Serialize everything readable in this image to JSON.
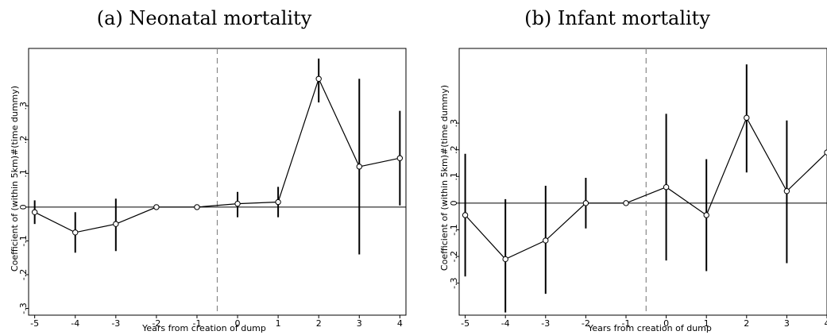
{
  "chart_data": [
    {
      "type": "line",
      "title": "(a) Neonatal mortality",
      "xlabel": "Years from creation of dump",
      "ylabel": "Coefficient of (within 5km)#(time dummy)",
      "x": [
        -5,
        -4,
        -3,
        -2,
        -1,
        0,
        1,
        2,
        3,
        4
      ],
      "values": [
        -0.015,
        -0.075,
        -0.05,
        0.0,
        0.0,
        0.01,
        0.015,
        0.38,
        0.12,
        0.145
      ],
      "ci_low": [
        -0.05,
        -0.135,
        -0.13,
        0.0,
        0.0,
        -0.03,
        -0.03,
        0.31,
        -0.14,
        0.005
      ],
      "ci_high": [
        0.02,
        -0.015,
        0.025,
        0.0,
        0.0,
        0.045,
        0.06,
        0.44,
        0.38,
        0.285
      ],
      "xticks": [
        "-5",
        "-4",
        "-3",
        "-2",
        "-1",
        "0",
        "1",
        "2",
        "3",
        "4"
      ],
      "yticks": [
        {
          "value": -0.3,
          "label": "-.3"
        },
        {
          "value": -0.2,
          "label": "-.2"
        },
        {
          "value": -0.1,
          "label": "-.1"
        },
        {
          "value": 0,
          "label": "0"
        },
        {
          "value": 0.1,
          "label": ".1"
        },
        {
          "value": 0.2,
          "label": ".2"
        },
        {
          "value": 0.3,
          "label": ".3"
        }
      ],
      "xlim": [
        -5.15,
        4.15
      ],
      "ylim": [
        -0.32,
        0.47
      ],
      "event_line_x": -0.5,
      "reference_line_y": 0,
      "grid": false
    },
    {
      "type": "line",
      "title": "(b) Infant mortality",
      "xlabel": "Years from creation of dump",
      "ylabel": "Coefficient of (within 5km)#(time dummy)",
      "x": [
        -5,
        -4,
        -3,
        -2,
        -1,
        0,
        1,
        2,
        3,
        4
      ],
      "values": [
        -0.045,
        -0.21,
        -0.14,
        0.0,
        0.0,
        0.06,
        -0.045,
        0.32,
        0.045,
        0.19
      ],
      "ci_low": [
        -0.275,
        -0.41,
        -0.34,
        -0.095,
        0.0,
        -0.215,
        -0.255,
        0.115,
        -0.225,
        0.19
      ],
      "ci_high": [
        0.185,
        0.015,
        0.065,
        0.095,
        0.0,
        0.335,
        0.165,
        0.52,
        0.31,
        0.19
      ],
      "xticks": [
        "-5",
        "-4",
        "-3",
        "-2",
        "-1",
        "0",
        "1",
        "2",
        "3",
        "4"
      ],
      "yticks": [
        {
          "value": -0.3,
          "label": "-.3"
        },
        {
          "value": -0.2,
          "label": "-.2"
        },
        {
          "value": -0.1,
          "label": "-.1"
        },
        {
          "value": 0,
          "label": "0"
        },
        {
          "value": 0.1,
          "label": ".1"
        },
        {
          "value": 0.2,
          "label": ".2"
        },
        {
          "value": 0.3,
          "label": ".3"
        }
      ],
      "xlim": [
        -5.15,
        4.0
      ],
      "ylim": [
        -0.42,
        0.58
      ],
      "event_line_x": -0.5,
      "reference_line_y": 0,
      "grid": false
    }
  ]
}
